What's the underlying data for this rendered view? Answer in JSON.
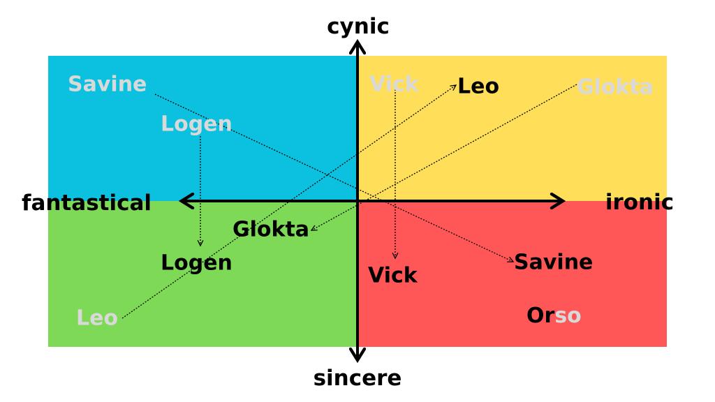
{
  "axes": {
    "top": "cynic",
    "bottom": "sincere",
    "left": "fantastical",
    "right": "ironic"
  },
  "colors": {
    "top_left": "#0CC0DF",
    "top_right": "#FFDE59",
    "bottom_left": "#7ED957",
    "bottom_right": "#FF5757",
    "faded_text": "#D9D9D9",
    "text": "#000000"
  },
  "characters": {
    "savine_from": "Savine",
    "savine_to": "Savine",
    "logen_from": "Logen",
    "logen_to": "Logen",
    "vick_from": "Vick",
    "vick_to": "Vick",
    "leo_from": "Leo",
    "leo_to": "Leo",
    "glokta_from": "Glokta",
    "glokta_to": "Glokta",
    "orso_part1": "Or",
    "orso_part2": "so"
  }
}
